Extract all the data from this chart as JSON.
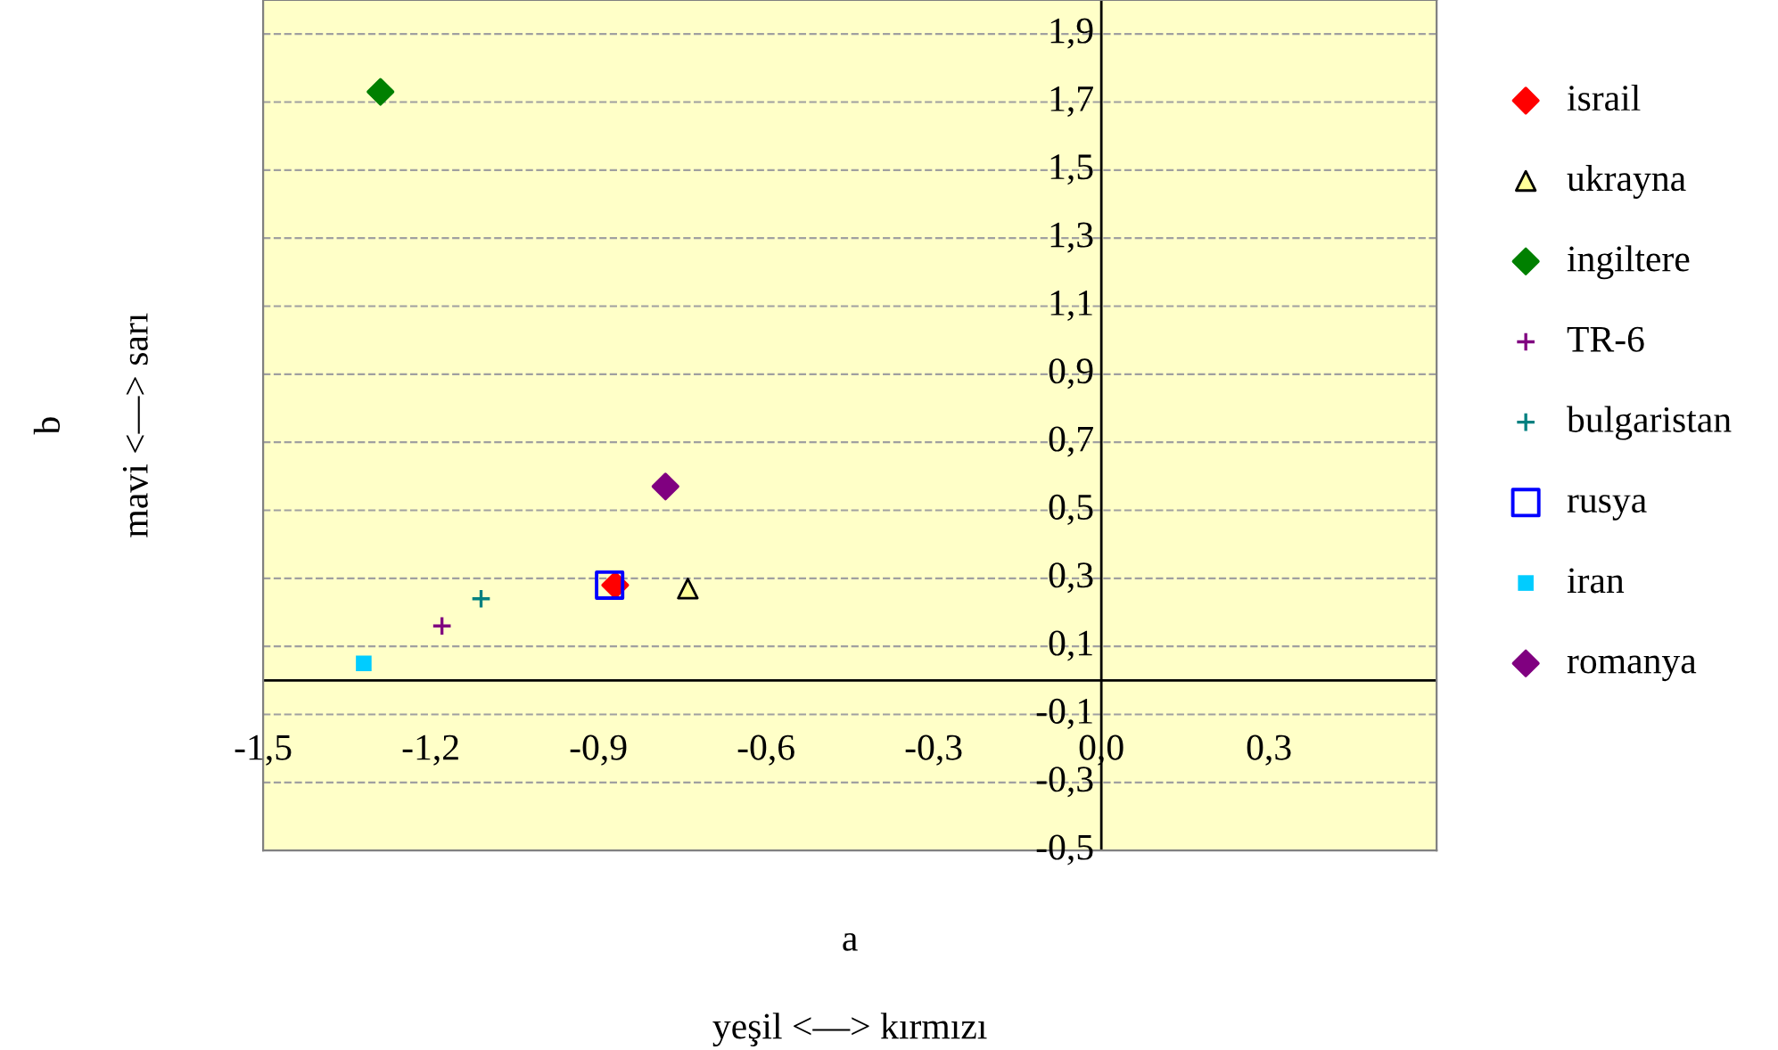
{
  "chart_data": {
    "type": "scatter",
    "xlabel": "a\n\nyeşil <—> kırmızı",
    "ylabel": "b\n\nmavi <—> sarı",
    "xlim": [
      -1.5,
      0.6
    ],
    "ylim": [
      -0.5,
      2.0
    ],
    "xticks": [
      {
        "value": -1.5,
        "label": "-1,5"
      },
      {
        "value": -1.2,
        "label": "-1,2"
      },
      {
        "value": -0.9,
        "label": "-0,9"
      },
      {
        "value": -0.6,
        "label": "-0,6"
      },
      {
        "value": -0.3,
        "label": "-0,3"
      },
      {
        "value": 0.0,
        "label": "0,0"
      },
      {
        "value": 0.3,
        "label": "0,3"
      }
    ],
    "yticks": [
      {
        "value": -0.5,
        "label": "-0,5"
      },
      {
        "value": -0.3,
        "label": "-0,3"
      },
      {
        "value": -0.1,
        "label": "-0,1"
      },
      {
        "value": 0.1,
        "label": "0,1"
      },
      {
        "value": 0.3,
        "label": "0,3"
      },
      {
        "value": 0.5,
        "label": "0,5"
      },
      {
        "value": 0.7,
        "label": "0,7"
      },
      {
        "value": 0.9,
        "label": "0,9"
      },
      {
        "value": 1.1,
        "label": "1,1"
      },
      {
        "value": 1.3,
        "label": "1,3"
      },
      {
        "value": 1.5,
        "label": "1,5"
      },
      {
        "value": 1.7,
        "label": "1,7"
      },
      {
        "value": 1.9,
        "label": "1,9"
      }
    ],
    "grid": "y",
    "legend": "right",
    "series": [
      {
        "name": "israil",
        "color": "#ff0000",
        "marker": "diamond",
        "x": [
          -0.87
        ],
        "values": [
          0.28
        ]
      },
      {
        "name": "ukrayna",
        "color": "#ffff99",
        "marker": "triangle",
        "x": [
          -0.74
        ],
        "values": [
          0.27
        ]
      },
      {
        "name": "ingiltere",
        "color": "#008000",
        "marker": "diamond",
        "x": [
          -1.29
        ],
        "values": [
          1.73
        ]
      },
      {
        "name": "TR-6",
        "color": "#800080",
        "marker": "cross",
        "x": [
          -1.18
        ],
        "values": [
          0.16
        ]
      },
      {
        "name": "bulgaristan",
        "color": "#008080",
        "marker": "cross",
        "x": [
          -1.11
        ],
        "values": [
          0.24
        ]
      },
      {
        "name": "rusya",
        "color": "#0000ff",
        "marker": "square",
        "x": [
          -0.88
        ],
        "values": [
          0.28
        ]
      },
      {
        "name": "iran",
        "color": "#00ccff",
        "marker": "square",
        "x": [
          -1.32
        ],
        "values": [
          0.05
        ]
      },
      {
        "name": "romanya",
        "color": "#800080",
        "marker": "diamond",
        "x": [
          -0.78
        ],
        "values": [
          0.57
        ]
      }
    ]
  }
}
